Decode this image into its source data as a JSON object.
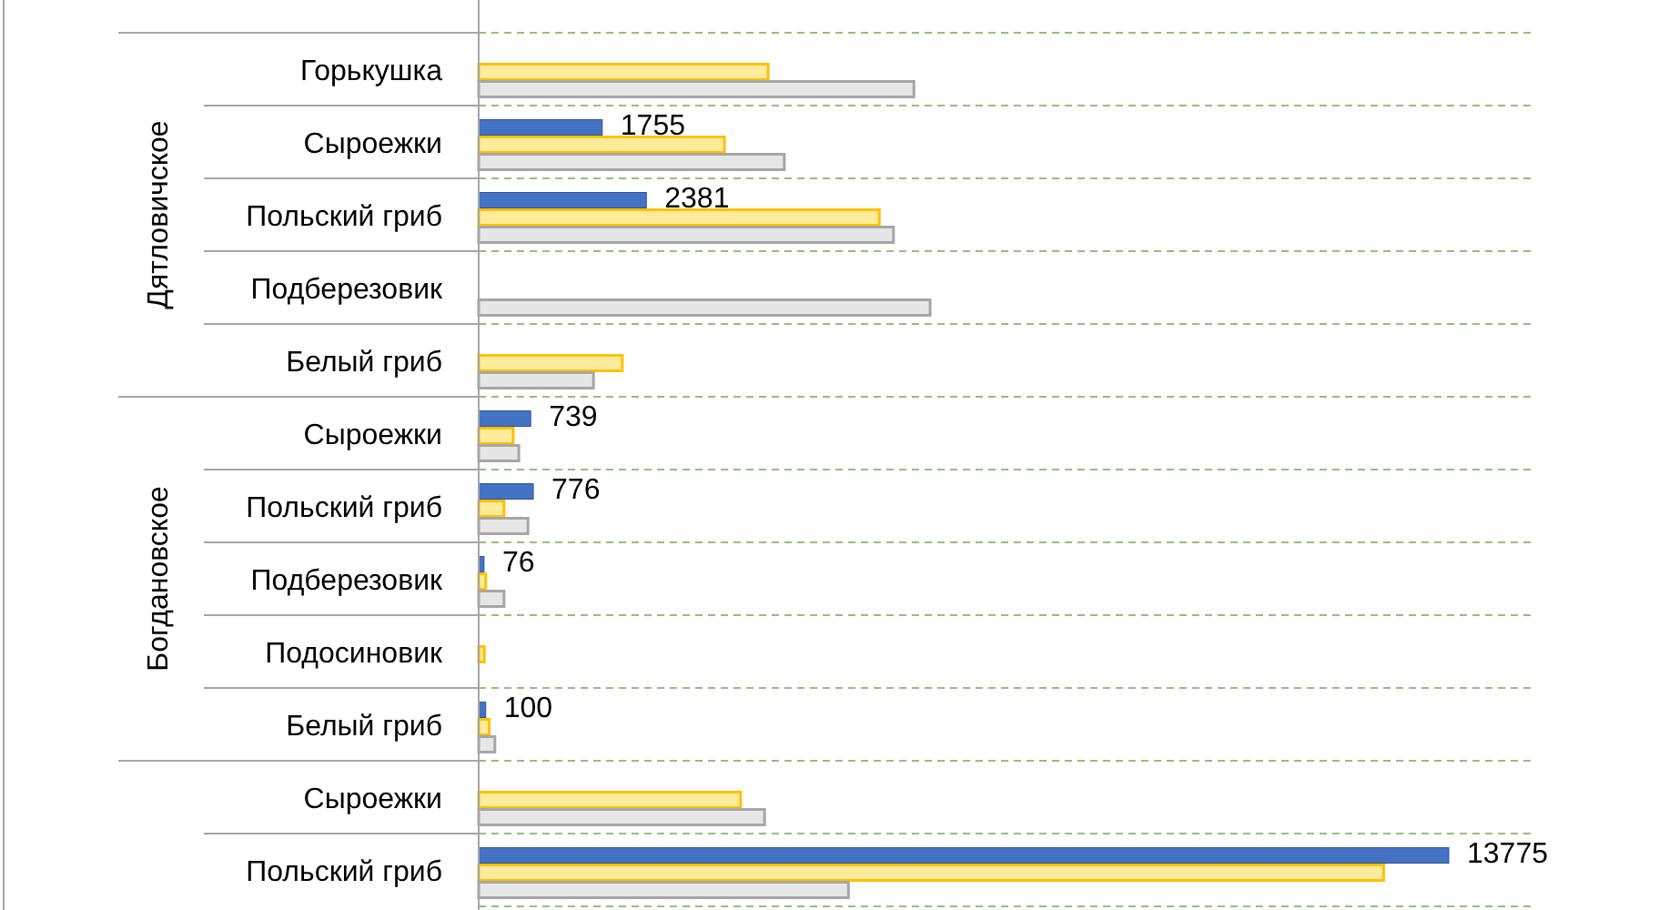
{
  "chart_data": {
    "type": "bar",
    "orientation": "horizontal",
    "grid": "y",
    "categories": [
      "Горькушка",
      "Сыроежки",
      "Польский гриб",
      "Подберезовик",
      "Белый гриб",
      "Сыроежки",
      "Польский гриб",
      "Подберезовик",
      "Подосиновик",
      "Белый гриб",
      "Сыроежки",
      "Польский гриб"
    ],
    "series": [
      {
        "color": "#4472c4",
        "values": [
          null,
          1755,
          2381,
          null,
          null,
          739,
          776,
          76,
          null,
          100,
          null,
          13775
        ],
        "value_labels": [
          null,
          "1755",
          "2381",
          null,
          null,
          "739",
          "776",
          "76",
          null,
          "100",
          null,
          "13775"
        ]
      },
      {
        "color": "#ffeb9c",
        "values": [
          4110,
          3490,
          5690,
          null,
          2040,
          490,
          360,
          100,
          80,
          150,
          3720,
          12850
        ]
      },
      {
        "color": "#e7e6e6",
        "values": [
          6180,
          4340,
          5890,
          6410,
          1630,
          570,
          700,
          360,
          null,
          230,
          4060,
          5250
        ]
      }
    ],
    "annotations": [
      "Дятловичское",
      "Богдановское"
    ]
  }
}
